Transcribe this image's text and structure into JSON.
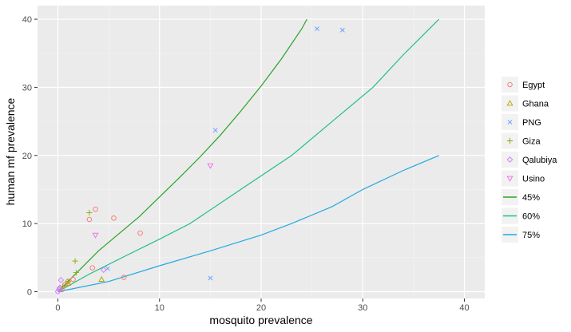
{
  "chart_data": {
    "type": "scatter",
    "title": "",
    "xlabel": "mosquito prevalence",
    "ylabel": "human mf prevalence",
    "xlim": [
      -2,
      42
    ],
    "ylim": [
      -1,
      42
    ],
    "x_ticks": [
      0,
      10,
      20,
      30,
      40
    ],
    "y_ticks": [
      0,
      10,
      20,
      30,
      40
    ],
    "grid": true,
    "legend_position": "right",
    "series": [
      {
        "name": "Egypt",
        "kind": "points",
        "marker": "circle",
        "color": "#F8766D",
        "points": [
          [
            0.2,
            0.5
          ],
          [
            0.4,
            0.3
          ],
          [
            0.7,
            1.0
          ],
          [
            1.0,
            1.5
          ],
          [
            1.5,
            1.8
          ],
          [
            3.1,
            10.6
          ],
          [
            3.7,
            12.1
          ],
          [
            3.4,
            3.5
          ],
          [
            5.5,
            10.8
          ],
          [
            8.1,
            8.6
          ],
          [
            6.5,
            2.1
          ]
        ]
      },
      {
        "name": "Ghana",
        "kind": "points",
        "marker": "triangle",
        "color": "#B79F00",
        "points": [
          [
            1.0,
            1.2
          ],
          [
            4.3,
            1.8
          ]
        ]
      },
      {
        "name": "PNG",
        "kind": "points",
        "marker": "x",
        "color": "#619CFF",
        "points": [
          [
            4.9,
            3.4
          ],
          [
            15.0,
            2.0
          ],
          [
            15.5,
            23.7
          ],
          [
            25.5,
            38.6
          ],
          [
            28.0,
            38.4
          ]
        ]
      },
      {
        "name": "Giza",
        "kind": "points",
        "marker": "plus",
        "color": "#7CAE00",
        "points": [
          [
            0.5,
            0.8
          ],
          [
            1.0,
            1.5
          ],
          [
            1.7,
            4.5
          ],
          [
            1.8,
            2.8
          ],
          [
            3.1,
            11.6
          ]
        ]
      },
      {
        "name": "Qalubiya",
        "kind": "points",
        "marker": "diamond",
        "color": "#C77CFF",
        "points": [
          [
            0.0,
            0.0
          ],
          [
            0.1,
            0.3
          ],
          [
            0.2,
            0.6
          ],
          [
            0.3,
            1.7
          ],
          [
            4.5,
            3.2
          ]
        ]
      },
      {
        "name": "Usino",
        "kind": "points",
        "marker": "triangle-down",
        "color": "#F564E3",
        "points": [
          [
            3.7,
            8.3
          ],
          [
            15.0,
            18.5
          ]
        ]
      },
      {
        "name": "45%",
        "kind": "line",
        "color": "#29A329",
        "points": [
          [
            0,
            0
          ],
          [
            2,
            3
          ],
          [
            4,
            6
          ],
          [
            6,
            8.5
          ],
          [
            8,
            11
          ],
          [
            10,
            13.9
          ],
          [
            12,
            16.8
          ],
          [
            14,
            19.8
          ],
          [
            16,
            23
          ],
          [
            18,
            26.5
          ],
          [
            20,
            30.2
          ],
          [
            22,
            34.2
          ],
          [
            24,
            38.6
          ],
          [
            24.5,
            40
          ]
        ]
      },
      {
        "name": "60%",
        "kind": "line",
        "color": "#1FC083",
        "points": [
          [
            0,
            0
          ],
          [
            3,
            2.5
          ],
          [
            7,
            5.5
          ],
          [
            10,
            7.7
          ],
          [
            13,
            10
          ],
          [
            18,
            15
          ],
          [
            23,
            20
          ],
          [
            27,
            25
          ],
          [
            31,
            30
          ],
          [
            34,
            34.8
          ],
          [
            37.5,
            40
          ]
        ]
      },
      {
        "name": "75%",
        "kind": "line",
        "color": "#22AAE0",
        "points": [
          [
            0,
            0
          ],
          [
            5,
            1.5
          ],
          [
            10,
            3.8
          ],
          [
            15,
            6
          ],
          [
            20,
            8.3
          ],
          [
            23,
            10
          ],
          [
            27,
            12.5
          ],
          [
            30,
            15
          ],
          [
            34,
            17.8
          ],
          [
            37.5,
            20
          ]
        ]
      }
    ]
  }
}
